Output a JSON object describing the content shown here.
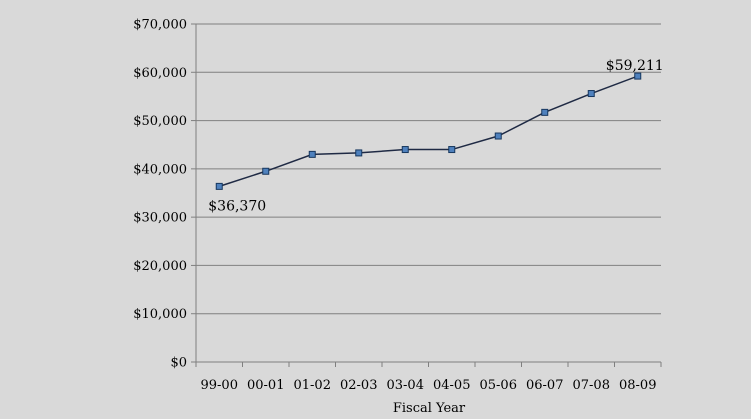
{
  "chart_data": {
    "type": "line",
    "title": "",
    "xlabel": "Fiscal Year",
    "ylabel": "",
    "categories": [
      "99-00",
      "00-01",
      "01-02",
      "02-03",
      "03-04",
      "04-05",
      "05-06",
      "06-07",
      "07-08",
      "08-09"
    ],
    "series": [
      {
        "values": [
          36370,
          39500,
          43000,
          43300,
          44000,
          44000,
          46800,
          51700,
          55600,
          59211
        ]
      }
    ],
    "ylim": [
      0,
      70000
    ],
    "yticks": [
      0,
      10000,
      20000,
      30000,
      40000,
      50000,
      60000,
      70000
    ],
    "ytick_labels": [
      "$0",
      "$10,000",
      "$20,000",
      "$30,000",
      "$40,000",
      "$50,000",
      "$60,000",
      "$70,000"
    ],
    "data_labels": [
      {
        "index": 0,
        "text": "$36,370"
      },
      {
        "index": 9,
        "text": "$59,211"
      }
    ],
    "grid": true,
    "legend": "none",
    "colors": {
      "background": "#d9d9d9",
      "gridline": "#808080",
      "axis": "#808080",
      "line": "#1f2a44",
      "marker_fill": "#4f81bd",
      "marker_stroke": "#17375e"
    }
  }
}
